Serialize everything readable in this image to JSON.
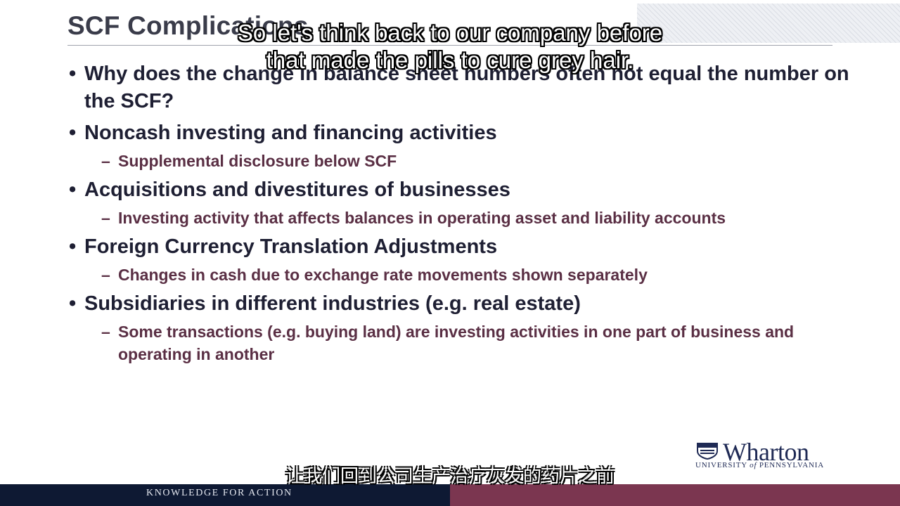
{
  "slide": {
    "title": "SCF Complications",
    "bullets": [
      {
        "text": "Why does the change in balance sheet numbers often not equal the number on the SCF?",
        "subs": []
      },
      {
        "text": "Noncash investing and financing activities",
        "subs": [
          "Supplemental disclosure below SCF"
        ]
      },
      {
        "text": "Acquisitions and divestitures of businesses",
        "subs": [
          "Investing activity that affects balances in operating asset and liability accounts"
        ]
      },
      {
        "text": "Foreign Currency Translation Adjustments",
        "subs": [
          "Changes in cash due to exchange rate movements shown separately"
        ]
      },
      {
        "text": "Subsidiaries in different industries (e.g. real estate)",
        "subs": [
          "Some transactions (e.g. buying land) are investing activities in one part of business and operating in another"
        ]
      }
    ]
  },
  "captions": {
    "english_line1": "So let's think back to our company before",
    "english_line2": "that made the pills to cure grey hair.",
    "chinese": "让我们回到公司生产治疗灰发的药片之前"
  },
  "logo": {
    "name": "Wharton",
    "subtitle_a": "UNIVERSITY ",
    "subtitle_of": "of",
    "subtitle_b": " PENNSYLVANIA"
  },
  "footer": {
    "tagline": "KNOWLEDGE FOR ACTION"
  },
  "colors": {
    "title": "#3a3c4a",
    "bullet_text": "#1e1f33",
    "sub_text": "#5a2f44",
    "footer_navy": "#0e1933",
    "footer_maroon": "#7b3650"
  }
}
